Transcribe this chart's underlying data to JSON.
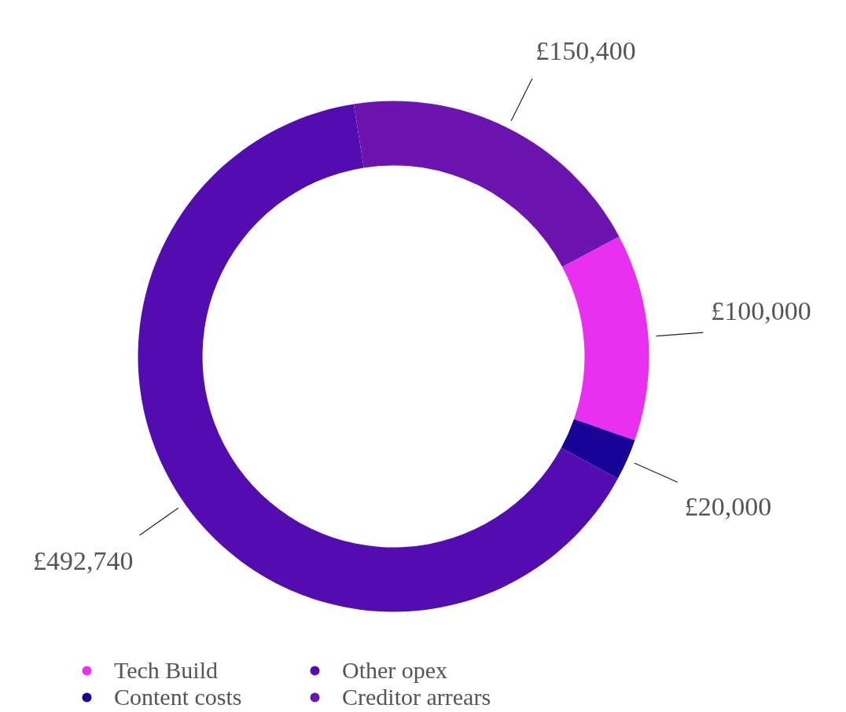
{
  "chart_data": {
    "type": "donut",
    "categories": [
      "Tech Build",
      "Content costs",
      "Other opex",
      "Creditor arrears"
    ],
    "values": [
      100000,
      20000,
      492740,
      150400
    ],
    "colors": [
      "#e930f0",
      "#170496",
      "#520cb0",
      "#6b14b0"
    ],
    "value_labels": [
      "£100,000",
      "£20,000",
      "£492,740",
      "£150,400"
    ],
    "legend": "bottom"
  }
}
